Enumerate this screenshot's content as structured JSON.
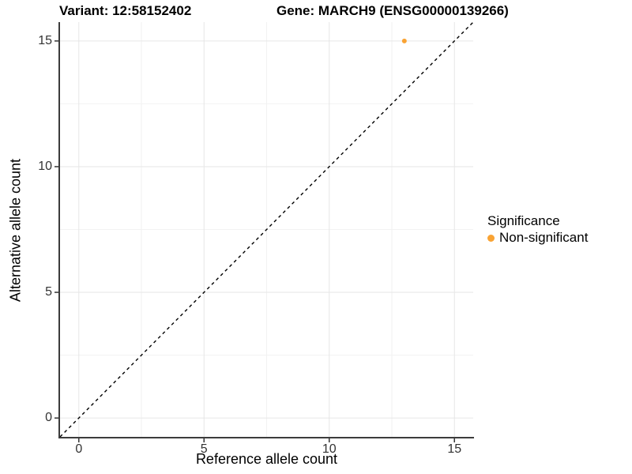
{
  "figure": {
    "title_variant": "Variant: 12:58152402",
    "title_gene": "Gene: MARCH9 (ENSG00000139266)"
  },
  "chart_data": {
    "type": "scatter",
    "title": "Variant: 12:58152402          Gene: MARCH9 (ENSG00000139266)",
    "xlabel": "Reference allele count",
    "ylabel": "Alternative allele count",
    "xlim": [
      -0.75,
      15.75
    ],
    "ylim": [
      -0.75,
      15.75
    ],
    "x_major_ticks": [
      0,
      5,
      10,
      15
    ],
    "y_major_ticks": [
      0,
      5,
      10,
      15
    ],
    "x_minor_ticks": [
      2.5,
      7.5,
      12.5
    ],
    "y_minor_ticks": [
      2.5,
      7.5,
      12.5
    ],
    "grid": "major+minor",
    "series": [
      {
        "name": "Non-significant",
        "color": "#F9A334",
        "points": [
          {
            "x": 13,
            "y": 15
          }
        ]
      }
    ],
    "identity_line": {
      "equation": "y = x",
      "style": "dashed",
      "color": "#000000"
    },
    "legend": {
      "title": "Significance",
      "position": "right",
      "items": [
        {
          "label": "Non-significant",
          "color": "#F9A334"
        }
      ]
    },
    "colors": {
      "background": "#FFFFFF",
      "axis_line": "#3C3C3C",
      "grid_major": "#E6E6E6",
      "grid_minor": "#F2F2F2",
      "tick_mark": "#333333",
      "tick_text": "#333333",
      "title_text": "#000000",
      "point": "#F9A334"
    }
  }
}
